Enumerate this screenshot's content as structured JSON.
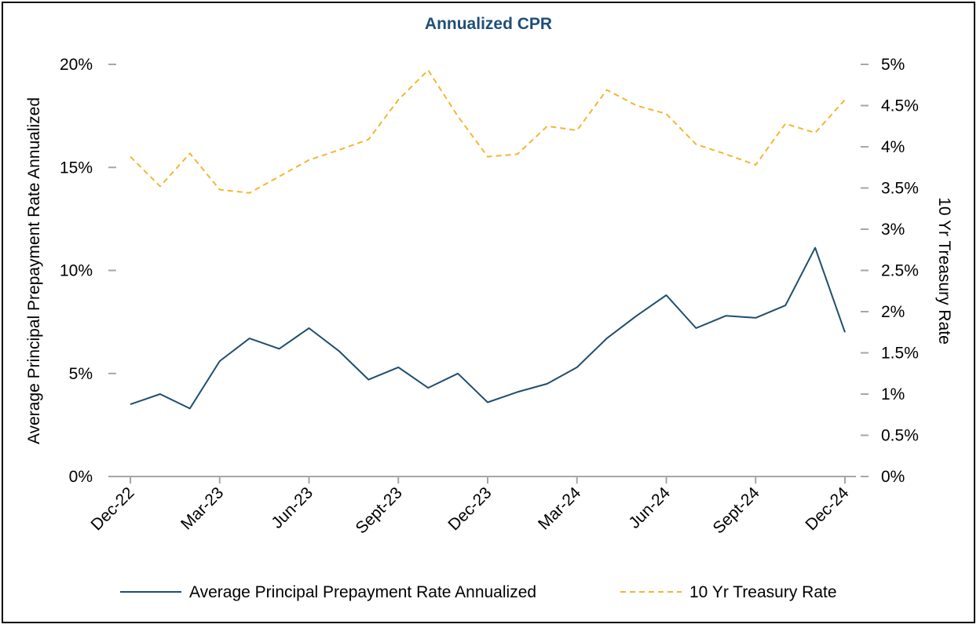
{
  "chart_data": {
    "type": "line",
    "title": "Annualized CPR",
    "x": [
      "Dec-22",
      "Jan-23",
      "Feb-23",
      "Mar-23",
      "Apr-23",
      "May-23",
      "Jun-23",
      "Jul-23",
      "Aug-23",
      "Sept-23",
      "Oct-23",
      "Nov-23",
      "Dec-23",
      "Jan-24",
      "Feb-24",
      "Mar-24",
      "Apr-24",
      "May-24",
      "Jun-24",
      "Jul-24",
      "Aug-24",
      "Sept-24",
      "Oct-24",
      "Nov-24",
      "Dec-24"
    ],
    "x_tick_labels": [
      "Dec-22",
      "Mar-23",
      "Jun-23",
      "Sept-23",
      "Dec-23",
      "Mar-24",
      "Jun-24",
      "Sept-24",
      "Dec-24"
    ],
    "ylabel": "Average Principal Prepayment Rate Annualized",
    "y2label": "10 Yr Treasury Rate",
    "ylim": [
      0,
      20
    ],
    "y2lim": [
      0,
      5
    ],
    "y_tick_labels": [
      "0%",
      "5%",
      "10%",
      "15%",
      "20%"
    ],
    "y2_tick_labels": [
      "0%",
      "0.5%",
      "1%",
      "1.5%",
      "2%",
      "2.5%",
      "3%",
      "3.5%",
      "4%",
      "4.5%",
      "5%"
    ],
    "grid": false,
    "legend_position": "bottom",
    "series": [
      {
        "name": "Average Principal Prepayment Rate Annualized",
        "axis": "left",
        "color": "#1f4e6e",
        "style": "solid",
        "values": [
          3.5,
          4.0,
          3.3,
          5.6,
          6.7,
          6.2,
          7.2,
          6.1,
          4.7,
          5.3,
          4.3,
          5.0,
          3.6,
          4.1,
          4.5,
          5.3,
          6.7,
          7.8,
          8.8,
          7.2,
          7.8,
          7.7,
          8.3,
          11.1,
          7.0
        ]
      },
      {
        "name": "10 Yr Treasury Rate",
        "axis": "right",
        "color": "#f2b632",
        "style": "dashed",
        "values": [
          3.88,
          3.52,
          3.92,
          3.48,
          3.44,
          3.64,
          3.84,
          3.96,
          4.09,
          4.57,
          4.93,
          4.37,
          3.88,
          3.91,
          4.25,
          4.2,
          4.69,
          4.5,
          4.4,
          4.03,
          3.91,
          3.78,
          4.28,
          4.17,
          4.57
        ]
      }
    ]
  }
}
